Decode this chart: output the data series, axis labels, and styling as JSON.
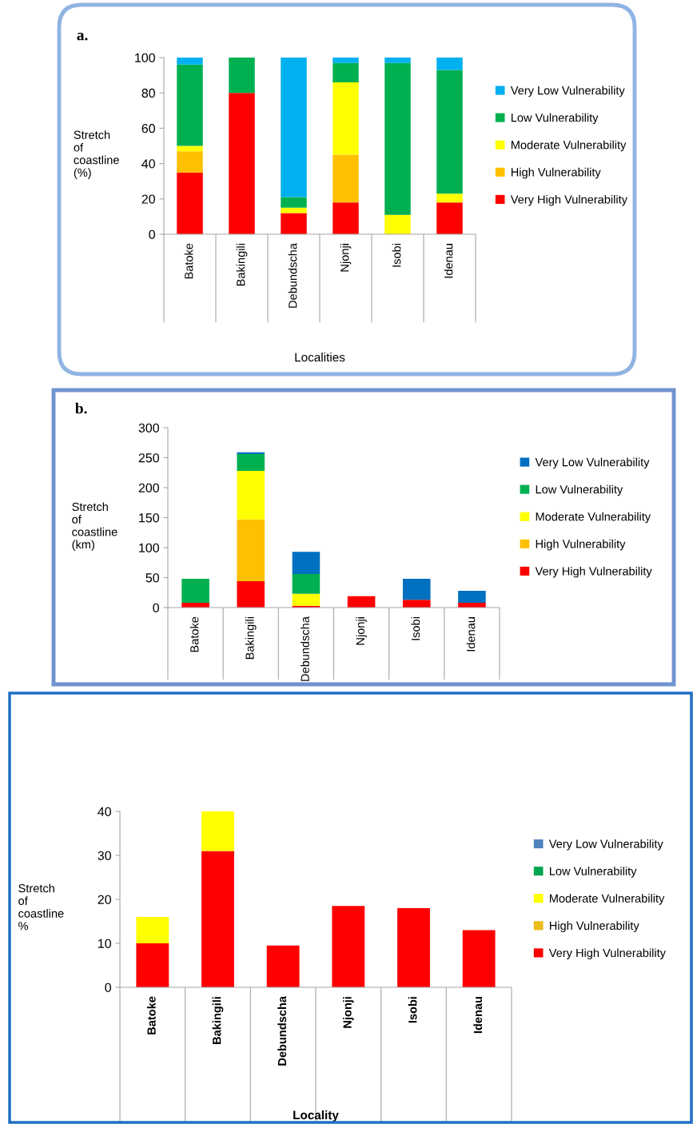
{
  "chart_data": [
    {
      "type": "bar",
      "title": "a.",
      "ylabel": "Stretch of coastline (%)",
      "xlabel": "Localities",
      "stacked": true,
      "legend": "right",
      "categories": [
        "Batoke",
        "Bakingili",
        "Debundscha",
        "Njonji",
        "Isobi",
        "Idenau"
      ],
      "ylim": [
        0,
        100
      ],
      "yticks": [
        0,
        20,
        40,
        60,
        80,
        100
      ],
      "series": [
        {
          "name": "Very High Vulnerability",
          "color": "#ff0000",
          "values": [
            35,
            80,
            12,
            18,
            null,
            18
          ]
        },
        {
          "name": "High Vulnerability",
          "color": "#ffc000",
          "values": [
            12,
            null,
            null,
            27,
            null,
            null
          ]
        },
        {
          "name": "Moderate Vulnerability",
          "color": "#ffff00",
          "values": [
            3,
            null,
            3,
            41,
            11,
            5
          ]
        },
        {
          "name": "Low Vulnerability",
          "color": "#00b050",
          "values": [
            46,
            20,
            6,
            11,
            86,
            70
          ]
        },
        {
          "name": "Very Low Vulnerability",
          "color": "#00b0f0",
          "values": [
            4,
            null,
            79,
            3,
            3,
            7
          ]
        }
      ]
    },
    {
      "type": "bar",
      "title": "b.",
      "ylabel": "Stretch of coastline (km)",
      "stacked": true,
      "legend": "right",
      "categories": [
        "Batoke",
        "Bakingili",
        "Debundscha",
        "Njonji",
        "Isobi",
        "Idenau"
      ],
      "ylim": [
        0,
        300
      ],
      "yticks": [
        0,
        50,
        100,
        150,
        200,
        250,
        300
      ],
      "series": [
        {
          "name": "Very High Vulnerability",
          "color": "#ff0000",
          "values": [
            8,
            44,
            3,
            19,
            13,
            8
          ]
        },
        {
          "name": "High Vulnerability",
          "color": "#ffc000",
          "values": [
            null,
            103,
            null,
            null,
            null,
            null
          ]
        },
        {
          "name": "Moderate Vulnerability",
          "color": "#ffff00",
          "values": [
            null,
            81,
            20,
            null,
            null,
            null
          ]
        },
        {
          "name": "Low Vulnerability",
          "color": "#00b050",
          "values": [
            40,
            28,
            33,
            null,
            null,
            null
          ]
        },
        {
          "name": "Very Low Vulnerability",
          "color": "#0070c0",
          "values": [
            null,
            3,
            37,
            null,
            35,
            20
          ]
        }
      ]
    },
    {
      "type": "bar",
      "ylabel": "Stretch of coastline %",
      "xlabel": "Locality",
      "stacked": true,
      "legend": "right",
      "categories": [
        "Batoke",
        "Bakingili",
        "Debundscha",
        "Njonji",
        "Isobi",
        "Idenau"
      ],
      "ylim": [
        0,
        40
      ],
      "yticks": [
        0,
        10,
        20,
        30,
        40
      ],
      "series": [
        {
          "name": "Very High Vulnerability",
          "color": "#ff0000",
          "values": [
            10,
            31,
            9.5,
            18.5,
            18,
            13
          ]
        },
        {
          "name": "High Vulnerability",
          "color": "#ecbc1c",
          "values": [
            null,
            null,
            null,
            null,
            null,
            null
          ]
        },
        {
          "name": "Moderate Vulnerability",
          "color": "#ffff00",
          "values": [
            6,
            9,
            null,
            null,
            null,
            null
          ]
        },
        {
          "name": "Low Vulnerability",
          "color": "#00a651",
          "values": [
            null,
            null,
            null,
            null,
            null,
            null
          ]
        },
        {
          "name": "Very Low Vulnerability",
          "color": "#4f81bd",
          "values": [
            null,
            null,
            null,
            null,
            null,
            null
          ]
        }
      ]
    }
  ]
}
